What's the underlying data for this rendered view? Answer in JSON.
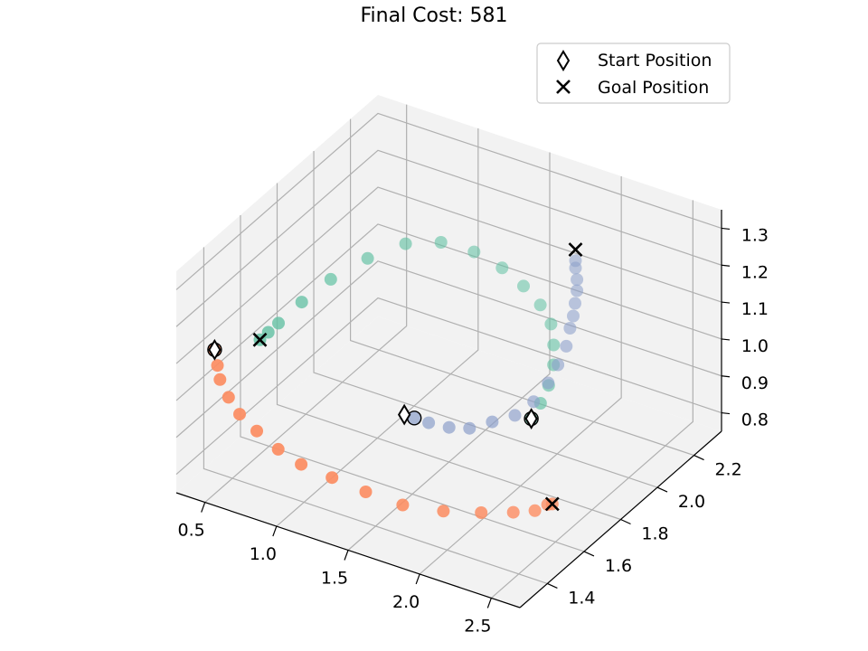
{
  "chart_data": {
    "type": "scatter3d",
    "title": "Final Cost: 581",
    "xlabel": "",
    "ylabel": "",
    "zlabel": "",
    "xlim": [
      0.3,
      2.7
    ],
    "ylim": [
      1.25,
      2.35
    ],
    "zlim": [
      0.75,
      1.35
    ],
    "x_ticks": [
      "0.5",
      "1.0",
      "1.5",
      "2.0",
      "2.5"
    ],
    "y_ticks": [
      "1.4",
      "1.6",
      "1.8",
      "2.0",
      "2.2"
    ],
    "z_ticks": [
      "0.8",
      "0.9",
      "1.0",
      "1.1",
      "1.2",
      "1.3"
    ],
    "grid": true,
    "legend": {
      "placement": "top-right",
      "entries": [
        {
          "label": "Start Position",
          "marker": "diamond"
        },
        {
          "label": "Goal Position",
          "marker": "x"
        }
      ]
    },
    "series": [
      {
        "color": "#66c2a5",
        "start": [
          2.05,
          1.82,
          0.93
        ],
        "goal": [
          0.5,
          1.55,
          1.06
        ],
        "points": [
          [
            2.05,
            1.82,
            0.93
          ],
          [
            2.05,
            1.87,
            0.95
          ],
          [
            2.03,
            1.93,
            0.97
          ],
          [
            2.0,
            1.98,
            1.0
          ],
          [
            1.95,
            2.02,
            1.03
          ],
          [
            1.88,
            2.06,
            1.06
          ],
          [
            1.78,
            2.08,
            1.09
          ],
          [
            1.65,
            2.09,
            1.12
          ],
          [
            1.5,
            2.09,
            1.15
          ],
          [
            1.33,
            2.07,
            1.18
          ],
          [
            1.15,
            2.03,
            1.2
          ],
          [
            0.98,
            1.97,
            1.2
          ],
          [
            0.83,
            1.88,
            1.18
          ],
          [
            0.7,
            1.78,
            1.15
          ],
          [
            0.6,
            1.7,
            1.11
          ],
          [
            0.54,
            1.62,
            1.08
          ],
          [
            0.52,
            1.58,
            1.07
          ],
          [
            0.5,
            1.55,
            1.06
          ]
        ]
      },
      {
        "color": "#fc8d62",
        "start": [
          0.35,
          1.42,
          1.07
        ],
        "goal": [
          2.35,
          1.7,
          0.79
        ],
        "points": [
          [
            0.35,
            1.42,
            1.07
          ],
          [
            0.37,
            1.42,
            1.03
          ],
          [
            0.4,
            1.41,
            1.0
          ],
          [
            0.46,
            1.41,
            0.96
          ],
          [
            0.55,
            1.4,
            0.93
          ],
          [
            0.67,
            1.4,
            0.9
          ],
          [
            0.82,
            1.4,
            0.87
          ],
          [
            0.98,
            1.4,
            0.85
          ],
          [
            1.17,
            1.42,
            0.83
          ],
          [
            1.38,
            1.44,
            0.81
          ],
          [
            1.6,
            1.47,
            0.79
          ],
          [
            1.82,
            1.52,
            0.78
          ],
          [
            2.02,
            1.57,
            0.78
          ],
          [
            2.18,
            1.62,
            0.78
          ],
          [
            2.28,
            1.66,
            0.78
          ],
          [
            2.33,
            1.69,
            0.79
          ],
          [
            2.35,
            1.7,
            0.79
          ]
        ]
      },
      {
        "color": "#8da0cb",
        "start": [
          1.15,
          1.83,
          0.82
        ],
        "goal": [
          2.0,
          2.1,
          1.26
        ],
        "points": [
          [
            1.22,
            1.83,
            0.82
          ],
          [
            1.32,
            1.83,
            0.82
          ],
          [
            1.45,
            1.84,
            0.82
          ],
          [
            1.58,
            1.85,
            0.83
          ],
          [
            1.7,
            1.88,
            0.85
          ],
          [
            1.82,
            1.91,
            0.87
          ],
          [
            1.9,
            1.95,
            0.9
          ],
          [
            1.95,
            1.99,
            0.94
          ],
          [
            1.98,
            2.02,
            0.98
          ],
          [
            2.0,
            2.05,
            1.02
          ],
          [
            2.0,
            2.07,
            1.06
          ],
          [
            2.01,
            2.08,
            1.09
          ],
          [
            2.01,
            2.09,
            1.12
          ],
          [
            2.01,
            2.1,
            1.15
          ],
          [
            2.01,
            2.1,
            1.18
          ],
          [
            2.0,
            2.1,
            1.21
          ],
          [
            2.0,
            2.1,
            1.23
          ]
        ]
      }
    ]
  }
}
